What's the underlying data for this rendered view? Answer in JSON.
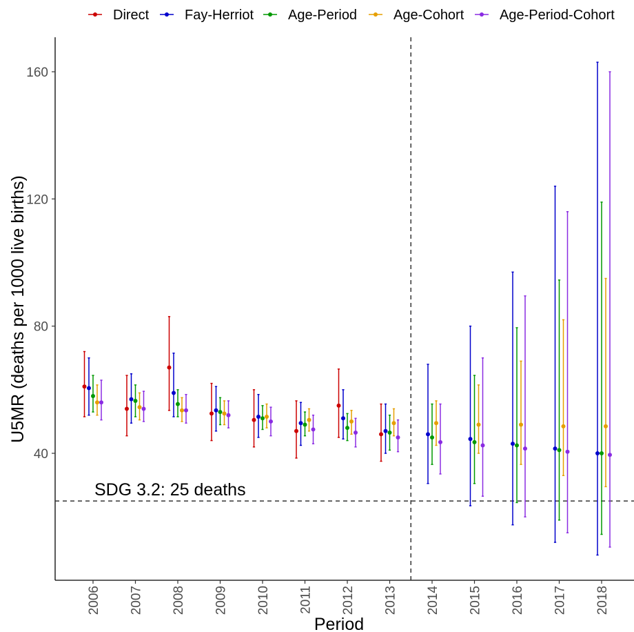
{
  "chart_data": {
    "type": "errorbar",
    "xlabel": "Period",
    "ylabel": "U5MR (deaths per 1000 live births)",
    "ylim": [
      -2,
      170
    ],
    "yticks": [
      40,
      80,
      120,
      160
    ],
    "categories": [
      "2006",
      "2007",
      "2008",
      "2009",
      "2010",
      "2011",
      "2012",
      "2013",
      "2014",
      "2015",
      "2016",
      "2017",
      "2018"
    ],
    "legend_position": "top",
    "vertical_reference": {
      "between": [
        "2013",
        "2014"
      ],
      "style": "dashed"
    },
    "horizontal_reference": {
      "value": 25,
      "label": "SDG 3.2: 25 deaths",
      "style": "dashed"
    },
    "series": [
      {
        "name": "Direct",
        "color": "#cc0000",
        "estimate": [
          61,
          54,
          67,
          52.5,
          50.5,
          47,
          55,
          46,
          null,
          null,
          null,
          null,
          null
        ],
        "lower": [
          51.5,
          45.5,
          53.5,
          44,
          42,
          38.5,
          45,
          37.5,
          null,
          null,
          null,
          null,
          null
        ],
        "upper": [
          72,
          64.5,
          83,
          62,
          60,
          56.5,
          66.5,
          55.5,
          null,
          null,
          null,
          null,
          null
        ]
      },
      {
        "name": "Fay-Herriot",
        "color": "#0000cc",
        "estimate": [
          60.5,
          57,
          59,
          53.5,
          51.5,
          49.5,
          51,
          47,
          46,
          44.5,
          43,
          41.5,
          40
        ],
        "lower": [
          52,
          49.5,
          51.5,
          47,
          45,
          42.5,
          44.5,
          40,
          30.5,
          23.5,
          17.5,
          12,
          8
        ],
        "upper": [
          70,
          65,
          71.5,
          61,
          58.5,
          56,
          60,
          55.5,
          68,
          80,
          97,
          124,
          163
        ]
      },
      {
        "name": "Age-Period",
        "color": "#009900",
        "estimate": [
          58,
          56.5,
          55.5,
          53,
          51,
          49,
          48,
          46.5,
          45,
          43.5,
          42.5,
          41,
          40
        ],
        "lower": [
          53,
          51.5,
          51.5,
          49,
          47.5,
          45.5,
          44,
          41,
          36.5,
          30.5,
          24.5,
          19,
          14.5
        ],
        "upper": [
          64.5,
          61.5,
          60,
          57.5,
          55,
          53,
          52.5,
          52,
          55.5,
          64.5,
          79.5,
          94.5,
          119
        ]
      },
      {
        "name": "Age-Cohort",
        "color": "#e69f00",
        "estimate": [
          56,
          54.5,
          53.5,
          52.5,
          51.5,
          50.5,
          50,
          49.5,
          49.5,
          49,
          49,
          48.5,
          48.5
        ],
        "lower": [
          52,
          50.5,
          50,
          49,
          48,
          47,
          46,
          45.5,
          42.5,
          40,
          36.5,
          33,
          29.5
        ],
        "upper": [
          61.5,
          59,
          57.5,
          56.5,
          55.5,
          54,
          53.5,
          54,
          56.5,
          61.5,
          69,
          82,
          95
        ]
      },
      {
        "name": "Age-Period-Cohort",
        "color": "#8a2be2",
        "estimate": [
          56,
          54,
          53.5,
          52,
          50,
          47.5,
          46.5,
          45,
          43.5,
          42.5,
          41.5,
          40.5,
          39.5
        ],
        "lower": [
          50.5,
          50,
          49.5,
          48,
          45.5,
          43,
          42,
          40.5,
          33.5,
          26.5,
          20,
          15,
          10.5
        ],
        "upper": [
          63,
          59.5,
          58.5,
          56.5,
          54.5,
          52,
          51,
          50.5,
          55.5,
          70,
          89.5,
          116,
          160
        ]
      }
    ]
  }
}
